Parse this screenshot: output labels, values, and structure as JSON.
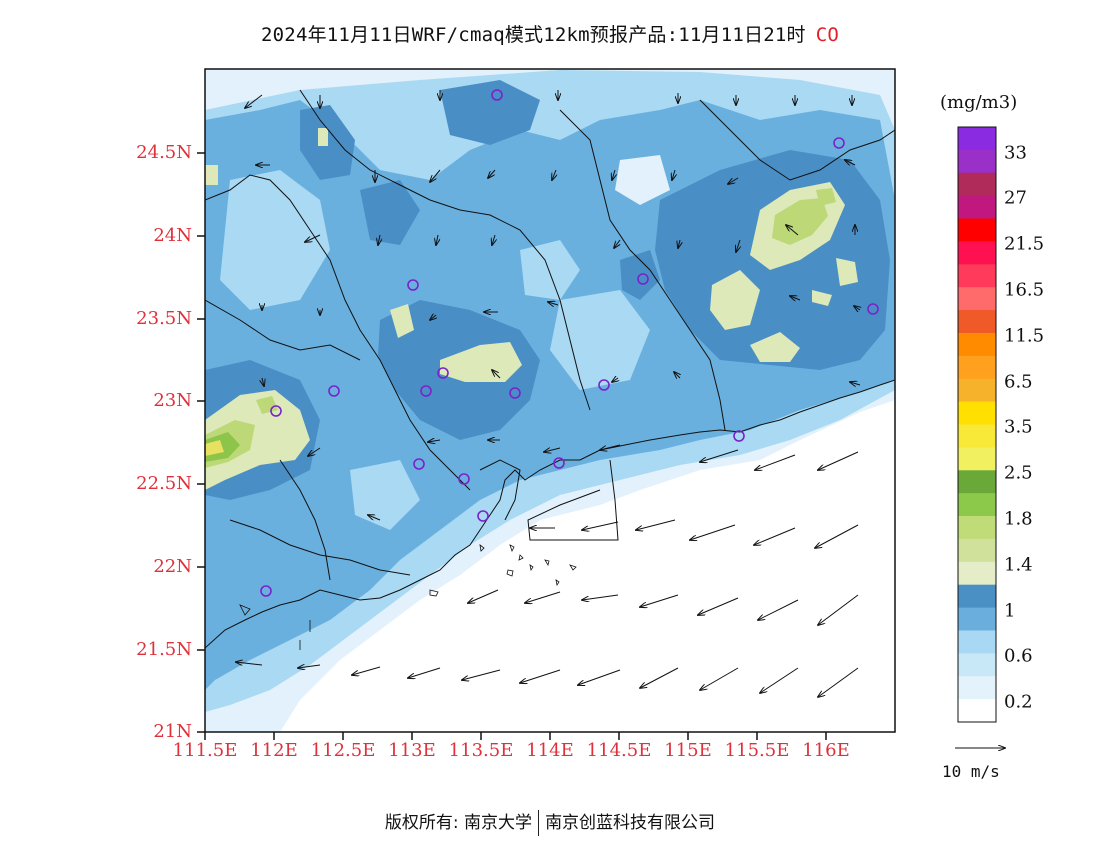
{
  "title": {
    "text": "2024年11月11日WRF/cmaq模式12km预报产品:11月11日21时",
    "species": "CO",
    "species_color": "#e0202a"
  },
  "axes": {
    "lat_labels": [
      "24.5N",
      "24N",
      "23.5N",
      "23N",
      "22.5N",
      "22N",
      "21.5N",
      "21N"
    ],
    "lon_labels": [
      "111.5E",
      "112E",
      "112.5E",
      "113E",
      "113.5E",
      "114E",
      "114.5E",
      "115E",
      "115.5E",
      "116E"
    ],
    "label_color": "#e0303a"
  },
  "colorbar": {
    "unit": "(mg/m3)",
    "labels": [
      "33",
      "27",
      "21.5",
      "16.5",
      "11.5",
      "6.5",
      "3.5",
      "2.5",
      "1.8",
      "1.4",
      "1",
      "0.6",
      "0.2"
    ],
    "colors_top_to_bottom": [
      "#8a2be2",
      "#9b30c8",
      "#b02a5a",
      "#c0187e",
      "#ff0000",
      "#ff1050",
      "#ff3a5a",
      "#ff6a6a",
      "#f05a28",
      "#ff8c00",
      "#ffa01e",
      "#f6b22a",
      "#ffe000",
      "#f8e838",
      "#f0f060",
      "#6aa83a",
      "#8cc84a",
      "#c0dc78",
      "#cfe19a",
      "#e4edc8",
      "#4a90c4",
      "#6aaede",
      "#a8d8f4",
      "#c8e8f8",
      "#e4f2fb",
      "#ffffff"
    ]
  },
  "vector_ref": {
    "label": "10  m/s"
  },
  "footer": {
    "left": "版权所有: 南京大学",
    "right": "南京创蓝科技有限公司"
  },
  "map_colors": {
    "lightest": "#e2f1fb",
    "light": "#a9d9f3",
    "medium": "#6ab0de",
    "dark": "#4a8ec6",
    "yellowgreen_pale": "#dde9b9",
    "yellowgreen": "#bcd877",
    "green": "#8cc54a"
  }
}
